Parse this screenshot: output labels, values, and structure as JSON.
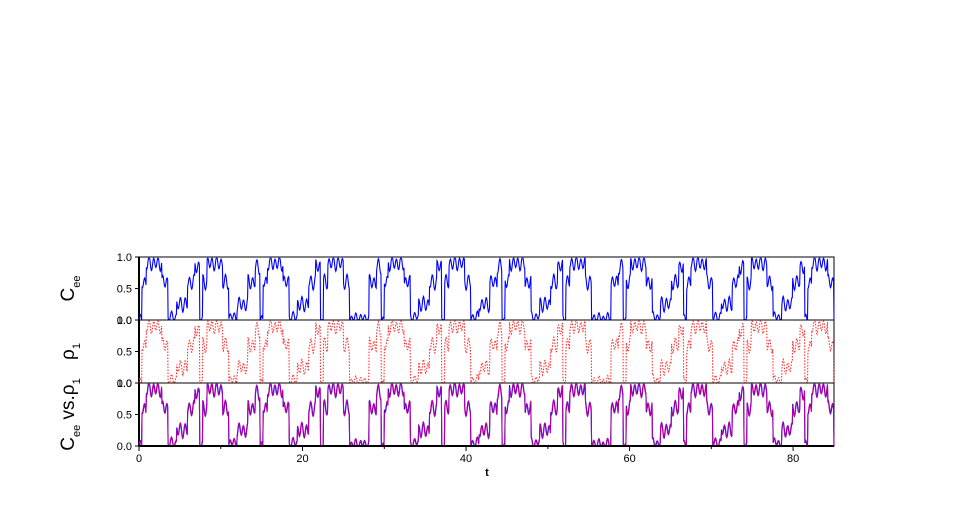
{
  "colors": {
    "panel_1_line": "#0000ff",
    "panel_2_line": "#ff3030",
    "panel_3_line_a": "#0000ff",
    "panel_3_line_b": "#b000a0"
  },
  "chart_data": {
    "type": "line",
    "layout": "three vertically stacked panels sharing one x axis",
    "xlabel": "t",
    "xlim": [
      0,
      85
    ],
    "x_ticks": [
      "0",
      "20",
      "40",
      "60",
      "80"
    ],
    "grid": false,
    "legend": "none",
    "signal_model": {
      "description": "quasi-periodic square-wave-like population oscillation with fast ripples",
      "slow_period": 7.4,
      "fast_ripple_period": 0.55,
      "plateau_levels": [
        0.0,
        0.25,
        0.6,
        0.9
      ],
      "ripple_amplitude": 0.06
    },
    "panels": [
      {
        "ylabel_main": "C",
        "ylabel_sub": "ee",
        "ylabel_suffix": "",
        "ylabel_sub2": "",
        "ylim": [
          0.0,
          1.0
        ],
        "y_ticks": [
          "0.0",
          "0.5",
          "1.0"
        ],
        "series": [
          {
            "style": "solid",
            "color_key": "panel_1_line"
          }
        ]
      },
      {
        "ylabel_main": "ρ",
        "ylabel_sub": "1",
        "ylabel_suffix": "",
        "ylabel_sub2": "",
        "ylim": [
          0.0,
          1.0
        ],
        "y_ticks": [
          "0.0",
          "0.5",
          "1.0"
        ],
        "series": [
          {
            "style": "dotted",
            "color_key": "panel_2_line"
          }
        ]
      },
      {
        "ylabel_main": "C",
        "ylabel_sub": "ee",
        "ylabel_suffix": " vs.ρ",
        "ylabel_sub2": "1",
        "ylim": [
          0.0,
          1.0
        ],
        "y_ticks": [
          "0.0",
          "0.5",
          "1.0"
        ],
        "series": [
          {
            "style": "solid",
            "color_key": "panel_3_line_a"
          },
          {
            "style": "solid",
            "color_key": "panel_3_line_b"
          }
        ]
      }
    ]
  }
}
